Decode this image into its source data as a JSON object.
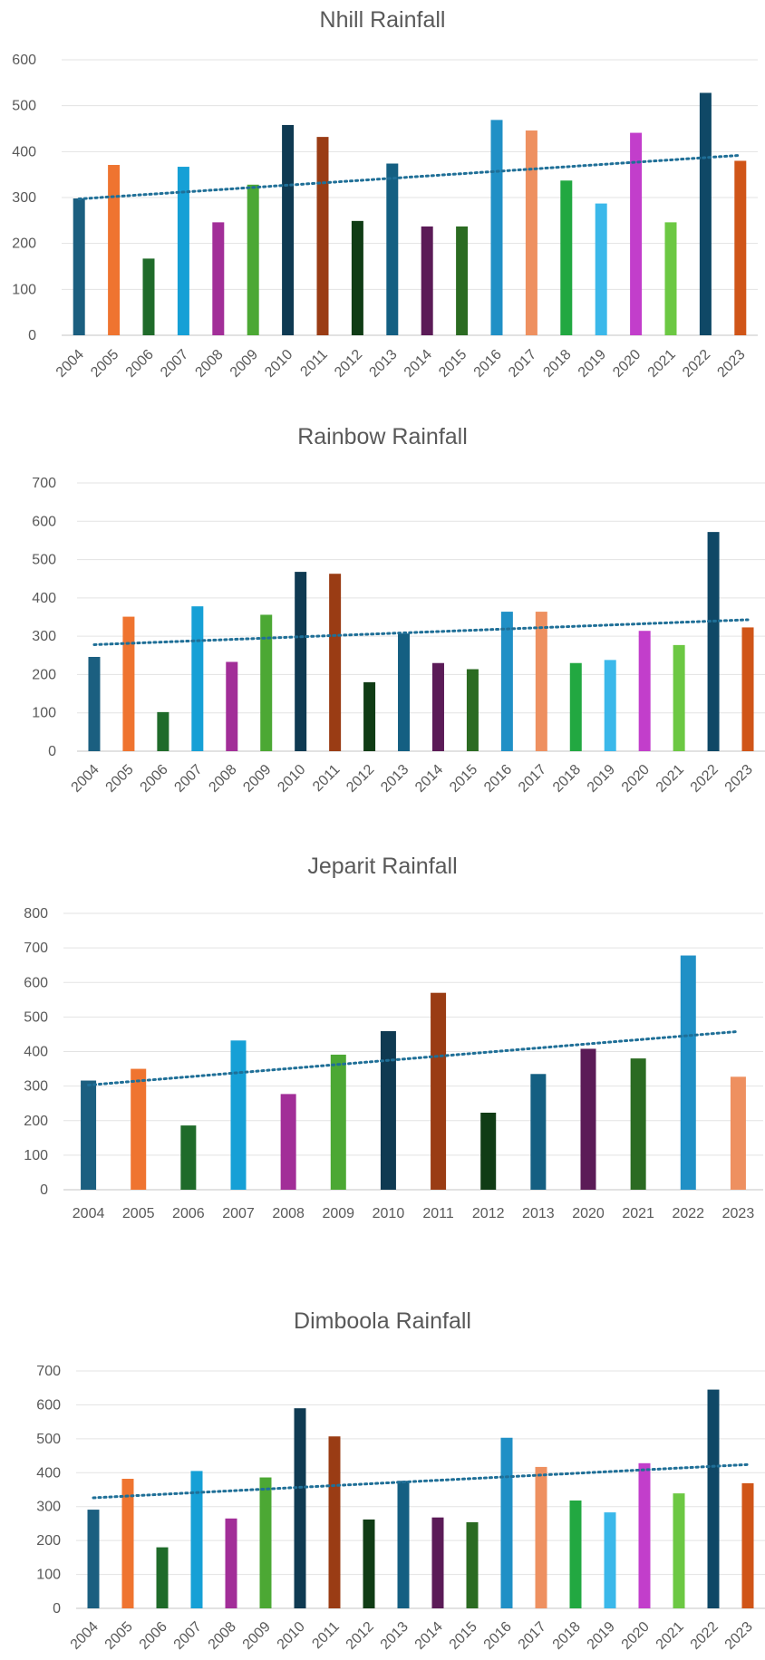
{
  "chart_data": [
    {
      "type": "bar",
      "title": "Nhill Rainfall",
      "categories": [
        "2004",
        "2005",
        "2006",
        "2007",
        "2008",
        "2009",
        "2010",
        "2011",
        "2012",
        "2013",
        "2014",
        "2015",
        "2016",
        "2017",
        "2018",
        "2019",
        "2020",
        "2021",
        "2022",
        "2023"
      ],
      "values": [
        298,
        371,
        167,
        367,
        246,
        328,
        458,
        432,
        249,
        374,
        237,
        237,
        469,
        446,
        337,
        287,
        441,
        246,
        528,
        380
      ],
      "colors": [
        "#1b5f80",
        "#ef7430",
        "#1f6b2a",
        "#16a0d6",
        "#a22e98",
        "#4ca834",
        "#0f3a52",
        "#9a3c14",
        "#103c15",
        "#145f82",
        "#5b1b57",
        "#2b6b22",
        "#2090c6",
        "#ee9060",
        "#22a841",
        "#3bb8ea",
        "#c23ecb",
        "#6cc843",
        "#0f4866",
        "#d05518"
      ],
      "trend": [
        297,
        392
      ],
      "ylim": [
        0,
        600
      ],
      "yticks": [
        "0",
        "100",
        "200",
        "300",
        "400",
        "500",
        "600"
      ],
      "xlabel": "",
      "ylabel": "",
      "grid": true,
      "rotated_labels": true
    },
    {
      "type": "bar",
      "title": "Rainbow Rainfall",
      "categories": [
        "2004",
        "2005",
        "2006",
        "2007",
        "2008",
        "2009",
        "2010",
        "2011",
        "2012",
        "2013",
        "2014",
        "2015",
        "2016",
        "2017",
        "2018",
        "2019",
        "2020",
        "2021",
        "2022",
        "2023"
      ],
      "values": [
        246,
        351,
        102,
        378,
        233,
        356,
        468,
        463,
        180,
        307,
        230,
        214,
        364,
        364,
        230,
        238,
        314,
        277,
        572,
        323
      ],
      "colors": [
        "#1b5f80",
        "#ef7430",
        "#1f6b2a",
        "#16a0d6",
        "#a22e98",
        "#4ca834",
        "#0f3a52",
        "#9a3c14",
        "#103c15",
        "#145f82",
        "#5b1b57",
        "#2b6b22",
        "#2090c6",
        "#ee9060",
        "#22a841",
        "#3bb8ea",
        "#c23ecb",
        "#6cc843",
        "#0f4866",
        "#d05518"
      ],
      "trend": [
        278,
        343
      ],
      "ylim": [
        0,
        700
      ],
      "yticks": [
        "0",
        "100",
        "200",
        "300",
        "400",
        "500",
        "600",
        "700"
      ],
      "xlabel": "",
      "ylabel": "",
      "grid": true,
      "rotated_labels": true
    },
    {
      "type": "bar",
      "title": "Jeparit Rainfall",
      "categories": [
        "2004",
        "2005",
        "2006",
        "2007",
        "2008",
        "2009",
        "2010",
        "2011",
        "2012",
        "2013",
        "2020",
        "2021",
        "2022",
        "2023"
      ],
      "values": [
        316,
        350,
        186,
        432,
        277,
        391,
        459,
        570,
        223,
        335,
        408,
        380,
        678,
        327
      ],
      "colors": [
        "#1b5f80",
        "#ef7430",
        "#1f6b2a",
        "#16a0d6",
        "#a22e98",
        "#4ca834",
        "#0f3a52",
        "#9a3c14",
        "#103c15",
        "#145f82",
        "#5b1b57",
        "#2b6b22",
        "#2090c6",
        "#ee9060"
      ],
      "trend": [
        303,
        458
      ],
      "ylim": [
        0,
        800
      ],
      "yticks": [
        "0",
        "100",
        "200",
        "300",
        "400",
        "500",
        "600",
        "700",
        "800"
      ],
      "xlabel": "",
      "ylabel": "",
      "grid": true,
      "rotated_labels": false
    },
    {
      "type": "bar",
      "title": "Dimboola Rainfall",
      "categories": [
        "2004",
        "2005",
        "2006",
        "2007",
        "2008",
        "2009",
        "2010",
        "2011",
        "2012",
        "2013",
        "2014",
        "2015",
        "2016",
        "2017",
        "2018",
        "2019",
        "2020",
        "2021",
        "2022",
        "2023"
      ],
      "values": [
        291,
        382,
        180,
        405,
        265,
        386,
        590,
        507,
        262,
        376,
        268,
        254,
        503,
        417,
        318,
        283,
        428,
        339,
        645,
        369
      ],
      "colors": [
        "#1b5f80",
        "#ef7430",
        "#1f6b2a",
        "#16a0d6",
        "#a22e98",
        "#4ca834",
        "#0f3a52",
        "#9a3c14",
        "#103c15",
        "#145f82",
        "#5b1b57",
        "#2b6b22",
        "#2090c6",
        "#ee9060",
        "#22a841",
        "#3bb8ea",
        "#c23ecb",
        "#6cc843",
        "#0f4866",
        "#d05518"
      ],
      "trend": [
        326,
        424
      ],
      "ylim": [
        0,
        700
      ],
      "yticks": [
        "0",
        "100",
        "200",
        "300",
        "400",
        "500",
        "600",
        "700"
      ],
      "xlabel": "",
      "ylabel": "",
      "grid": true,
      "rotated_labels": true
    }
  ]
}
